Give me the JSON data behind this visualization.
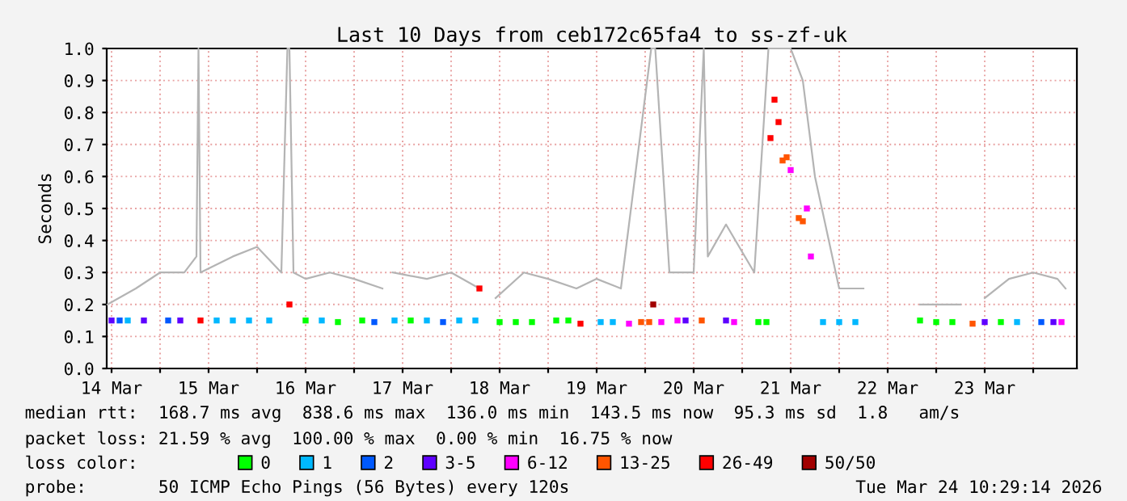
{
  "chart_data": {
    "type": "scatter",
    "title": "Last 10 Days from ceb172c65fa4 to ss-zf-uk",
    "ylabel": "Seconds",
    "xlim": [
      "2026-03-14T10:48",
      "2026-03-24T10:48"
    ],
    "ylim": [
      0,
      1.0
    ],
    "xticks": [
      {
        "value": "2026-03-14T12:00",
        "label": "14 Mar"
      },
      {
        "value": "2026-03-15T00:00",
        "label": null
      },
      {
        "value": "2026-03-15T12:00",
        "label": "15 Mar"
      },
      {
        "value": "2026-03-16T00:00",
        "label": null
      },
      {
        "value": "2026-03-16T12:00",
        "label": "16 Mar"
      },
      {
        "value": "2026-03-17T00:00",
        "label": null
      },
      {
        "value": "2026-03-17T12:00",
        "label": "17 Mar"
      },
      {
        "value": "2026-03-18T00:00",
        "label": null
      },
      {
        "value": "2026-03-18T12:00",
        "label": "18 Mar"
      },
      {
        "value": "2026-03-19T00:00",
        "label": null
      },
      {
        "value": "2026-03-19T12:00",
        "label": "19 Mar"
      },
      {
        "value": "2026-03-20T00:00",
        "label": null
      },
      {
        "value": "2026-03-20T12:00",
        "label": "20 Mar"
      },
      {
        "value": "2026-03-21T00:00",
        "label": null
      },
      {
        "value": "2026-03-21T12:00",
        "label": "21 Mar"
      },
      {
        "value": "2026-03-22T00:00",
        "label": null
      },
      {
        "value": "2026-03-22T12:00",
        "label": "22 Mar"
      },
      {
        "value": "2026-03-23T00:00",
        "label": null
      },
      {
        "value": "2026-03-23T12:00",
        "label": "23 Mar"
      },
      {
        "value": "2026-03-24T00:00",
        "label": null
      }
    ],
    "yticks": [
      {
        "value": 0,
        "label": "0.0"
      },
      0.1,
      0.2,
      0.3,
      0.4,
      0.5,
      0.6,
      0.7,
      0.8,
      0.9,
      {
        "value": 1.0,
        "label": "1.0"
      }
    ],
    "grid": true,
    "legend": "bottom",
    "legend_title": "loss color:",
    "marker": "square",
    "annotations": [
      "median rtt:  168.7 ms avg  838.6 ms max  136.0 ms min  143.5 ms now  95.3 ms sd  1.8   am/s",
      "packet loss: 21.59 % avg  100.00 % max  0.00 % min  16.75 % now",
      "probe:       50 ICMP Echo Pings (56 Bytes) every 120s",
      "Tue Mar 24 10:29:14 2026"
    ],
    "series": [
      {
        "type": "line",
        "marker": "none",
        "color": "#b4b4b4",
        "x": [
          "2026-03-14T11:00",
          "2026-03-14T18:00",
          "2026-03-15T00:00",
          "2026-03-15T06:00",
          "2026-03-15T09:00",
          "2026-03-15T09:30",
          "2026-03-15T10:00",
          "2026-03-15T18:00",
          "2026-03-16T00:00",
          "2026-03-16T06:00",
          "2026-03-16T07:30",
          "2026-03-16T08:00",
          "2026-03-16T09:00",
          "2026-03-16T12:00",
          "2026-03-16T18:00",
          "2026-03-17T00:00",
          "2026-03-17T07:00",
          "2026-03-17T08:00",
          "2026-03-17T09:30",
          "2026-03-17T18:00",
          "2026-03-18T00:00",
          "2026-03-18T07:00",
          "2026-03-18T09:00",
          "2026-03-18T11:00",
          "2026-03-18T18:00",
          "2026-03-19T00:00",
          "2026-03-19T07:00",
          "2026-03-19T12:00",
          "2026-03-19T18:00",
          "2026-03-20T01:30",
          "2026-03-20T02:30",
          "2026-03-20T06:00",
          "2026-03-20T12:00",
          "2026-03-20T14:30",
          "2026-03-20T15:30",
          "2026-03-20T20:00",
          "2026-03-21T03:00",
          "2026-03-21T06:30",
          "2026-03-21T09:00",
          "2026-03-21T12:00",
          "2026-03-21T15:00",
          "2026-03-21T18:00",
          "2026-03-22T00:00",
          "2026-03-22T06:00",
          "2026-03-22T12:00",
          "2026-03-22T20:00",
          "2026-03-23T06:00",
          "2026-03-23T08:00",
          "2026-03-23T12:00",
          "2026-03-23T18:00",
          "2026-03-24T00:00",
          "2026-03-24T06:00",
          "2026-03-24T08:00"
        ],
        "values": [
          0.2,
          0.25,
          0.3,
          0.3,
          0.35,
          1.0,
          0.3,
          0.35,
          0.38,
          0.3,
          1.0,
          1.0,
          0.3,
          0.28,
          0.3,
          0.28,
          0.25,
          null,
          0.3,
          0.28,
          0.3,
          0.25,
          null,
          0.22,
          0.3,
          0.28,
          0.25,
          0.28,
          0.25,
          1.0,
          1.0,
          0.3,
          0.3,
          1.0,
          0.35,
          0.45,
          0.3,
          1.0,
          1.0,
          1.0,
          0.9,
          0.6,
          0.25,
          0.25,
          null,
          0.2,
          0.2,
          null,
          0.22,
          0.28,
          0.3,
          0.28,
          0.25
        ]
      },
      {
        "name": "0",
        "color": "#00ff00",
        "x": [
          "2026-03-16T12:00",
          "2026-03-16T20:00",
          "2026-03-17T02:00",
          "2026-03-17T14:00",
          "2026-03-18T12:00",
          "2026-03-18T16:00",
          "2026-03-18T20:00",
          "2026-03-19T02:00",
          "2026-03-19T05:00",
          "2026-03-21T04:00",
          "2026-03-21T06:00",
          "2026-03-22T20:00",
          "2026-03-23T00:00",
          "2026-03-23T04:00",
          "2026-03-23T16:00"
        ],
        "values": [
          0.15,
          0.145,
          0.15,
          0.15,
          0.145,
          0.145,
          0.145,
          0.15,
          0.15,
          0.145,
          0.145,
          0.15,
          0.145,
          0.145,
          0.145
        ]
      },
      {
        "name": "1",
        "color": "#00b8ff",
        "x": [
          "2026-03-14T16:00",
          "2026-03-15T14:00",
          "2026-03-15T18:00",
          "2026-03-15T22:00",
          "2026-03-16T03:00",
          "2026-03-16T16:00",
          "2026-03-17T10:00",
          "2026-03-17T18:00",
          "2026-03-18T02:00",
          "2026-03-18T06:00",
          "2026-03-19T13:00",
          "2026-03-19T16:00",
          "2026-03-21T20:00",
          "2026-03-22T00:00",
          "2026-03-22T04:00",
          "2026-03-23T20:00"
        ],
        "values": [
          0.15,
          0.15,
          0.15,
          0.15,
          0.15,
          0.15,
          0.15,
          0.15,
          0.15,
          0.15,
          0.145,
          0.145,
          0.145,
          0.145,
          0.145,
          0.145
        ]
      },
      {
        "name": "2",
        "color": "#0059ff",
        "x": [
          "2026-03-14T14:00",
          "2026-03-15T02:00",
          "2026-03-17T05:00",
          "2026-03-17T22:00",
          "2026-03-24T02:00"
        ],
        "values": [
          0.15,
          0.15,
          0.145,
          0.145,
          0.145
        ]
      },
      {
        "name": "3-5",
        "color": "#5e00ff",
        "x": [
          "2026-03-14T12:00",
          "2026-03-14T20:00",
          "2026-03-15T05:00",
          "2026-03-20T10:00",
          "2026-03-20T20:00",
          "2026-03-23T12:00",
          "2026-03-24T05:00"
        ],
        "values": [
          0.15,
          0.15,
          0.15,
          0.15,
          0.15,
          0.145,
          0.145
        ]
      },
      {
        "name": "6-12",
        "color": "#ff00ff",
        "x": [
          "2026-03-19T20:00",
          "2026-03-20T04:00",
          "2026-03-20T08:00",
          "2026-03-20T22:00",
          "2026-03-21T12:00",
          "2026-03-21T16:00",
          "2026-03-21T17:00",
          "2026-03-24T07:00"
        ],
        "values": [
          0.14,
          0.145,
          0.15,
          0.145,
          0.62,
          0.5,
          0.35,
          0.145
        ]
      },
      {
        "name": "13-25",
        "color": "#ff5500",
        "x": [
          "2026-03-19T23:00",
          "2026-03-20T01:00",
          "2026-03-20T14:00",
          "2026-03-21T10:00",
          "2026-03-21T11:00",
          "2026-03-21T14:00",
          "2026-03-21T15:00",
          "2026-03-23T09:00"
        ],
        "values": [
          0.145,
          0.145,
          0.15,
          0.65,
          0.66,
          0.47,
          0.46,
          0.14
        ]
      },
      {
        "name": "26-49",
        "color": "#ff0000",
        "x": [
          "2026-03-15T10:00",
          "2026-03-16T08:00",
          "2026-03-18T07:00",
          "2026-03-19T08:00",
          "2026-03-21T07:00",
          "2026-03-21T08:00",
          "2026-03-21T09:00"
        ],
        "values": [
          0.15,
          0.2,
          0.25,
          0.14,
          0.72,
          0.84,
          0.77
        ]
      },
      {
        "name": "50/50",
        "color": "#a10000",
        "x": [
          "2026-03-20T02:00"
        ],
        "values": [
          0.2
        ]
      }
    ]
  }
}
